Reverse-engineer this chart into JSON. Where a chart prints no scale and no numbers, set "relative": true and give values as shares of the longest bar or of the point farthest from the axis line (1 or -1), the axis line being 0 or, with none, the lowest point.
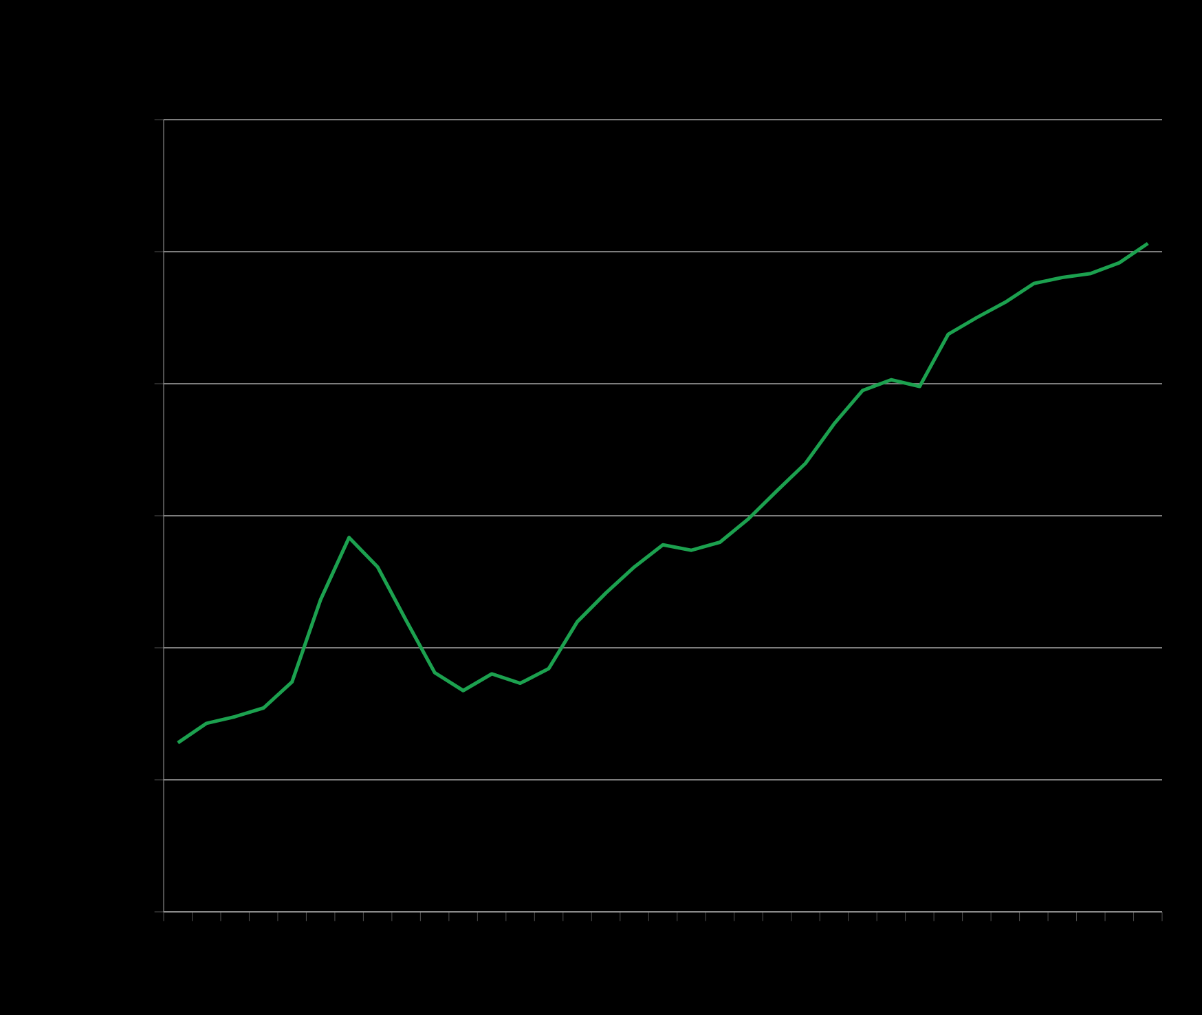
{
  "chart_data": {
    "type": "line",
    "relative": true,
    "grid": "y",
    "color": "#1ca14f",
    "categories": [
      null,
      null,
      null,
      null,
      null,
      null,
      null,
      null,
      null,
      null,
      null,
      null,
      null,
      null,
      null,
      null,
      null,
      null,
      null,
      null,
      null,
      null,
      null,
      null,
      null,
      null,
      null,
      null,
      null,
      null,
      null,
      null,
      null,
      null,
      null
    ],
    "values": [
      0.253,
      0.282,
      0.292,
      0.305,
      0.344,
      0.467,
      0.56,
      0.516,
      0.436,
      0.358,
      0.331,
      0.356,
      0.342,
      0.364,
      0.434,
      0.477,
      0.516,
      0.549,
      0.541,
      0.553,
      0.588,
      0.63,
      0.671,
      0.73,
      0.78,
      0.796,
      0.786,
      0.864,
      0.889,
      0.912,
      0.94,
      0.949,
      0.955,
      0.971,
      1
    ]
  }
}
